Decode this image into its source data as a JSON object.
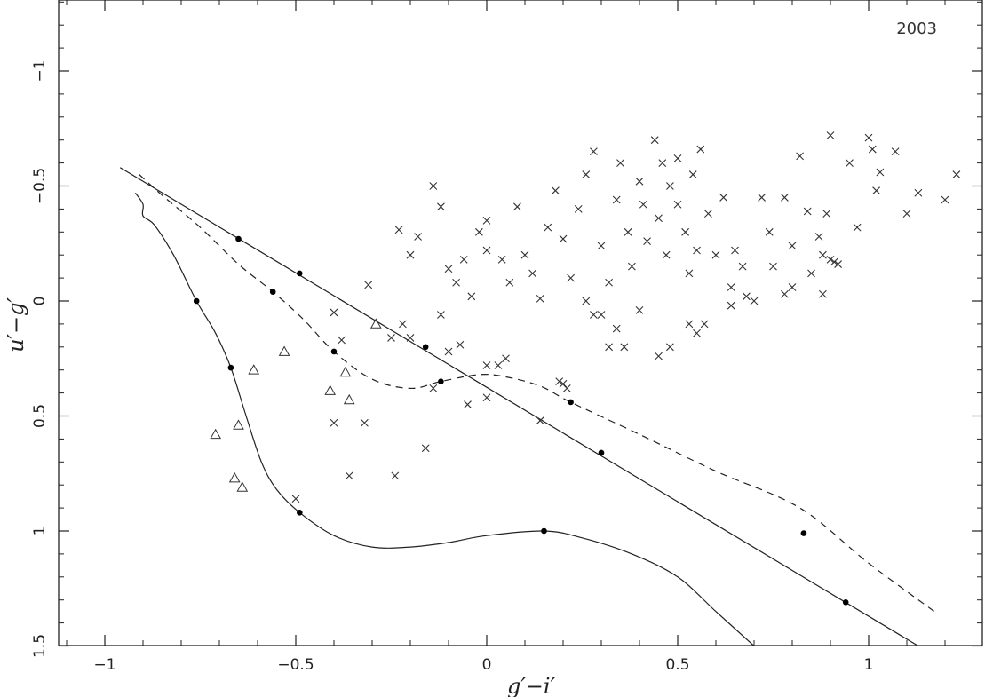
{
  "chart_data": {
    "type": "scatter",
    "year_label": "2003",
    "xlabel": "g′−i′",
    "ylabel": "u′−g′",
    "xlim": [
      -1.1,
      1.3
    ],
    "ylim": [
      1.5,
      -1.5
    ],
    "y_inverted": true,
    "x_ticks": [
      {
        "value": -1,
        "label": "−1"
      },
      {
        "value": -0.5,
        "label": "−0.5"
      },
      {
        "value": 0,
        "label": "0"
      },
      {
        "value": 0.5,
        "label": "0.5"
      },
      {
        "value": 1,
        "label": "1"
      }
    ],
    "y_ticks": [
      {
        "value": -1,
        "label": "−1"
      },
      {
        "value": -0.5,
        "label": "−0.5"
      },
      {
        "value": 0,
        "label": "0"
      },
      {
        "value": 0.5,
        "label": "0.5"
      },
      {
        "value": 1,
        "label": "1"
      },
      {
        "value": 1.5,
        "label": "1.5"
      }
    ],
    "curves": [
      {
        "style": "solid",
        "points": [
          [
            -0.96,
            -0.58
          ],
          [
            1.13,
            1.5
          ]
        ],
        "markers": [
          [
            -0.65,
            -0.27
          ],
          [
            -0.49,
            -0.12
          ],
          [
            -0.16,
            0.2
          ],
          [
            0.3,
            0.66
          ],
          [
            0.94,
            1.31
          ]
        ]
      },
      {
        "style": "dashed",
        "points": [
          [
            -0.91,
            -0.55
          ],
          [
            -0.85,
            -0.46
          ],
          [
            -0.75,
            -0.32
          ],
          [
            -0.65,
            -0.16
          ],
          [
            -0.56,
            -0.04
          ],
          [
            -0.48,
            0.08
          ],
          [
            -0.4,
            0.22
          ],
          [
            -0.3,
            0.34
          ],
          [
            -0.2,
            0.38
          ],
          [
            -0.12,
            0.35
          ],
          [
            -0.02,
            0.32
          ],
          [
            0.05,
            0.33
          ],
          [
            0.14,
            0.37
          ],
          [
            0.22,
            0.44
          ],
          [
            0.4,
            0.58
          ],
          [
            0.6,
            0.74
          ],
          [
            0.82,
            0.9
          ],
          [
            1.0,
            1.14
          ],
          [
            1.18,
            1.36
          ]
        ],
        "markers": [
          [
            -0.56,
            -0.04
          ],
          [
            -0.4,
            0.22
          ],
          [
            -0.12,
            0.35
          ],
          [
            0.22,
            0.44
          ],
          [
            0.83,
            1.01
          ]
        ]
      },
      {
        "style": "solid",
        "points": [
          [
            -0.92,
            -0.47
          ],
          [
            -0.9,
            -0.42
          ],
          [
            -0.9,
            -0.37
          ],
          [
            -0.87,
            -0.33
          ],
          [
            -0.82,
            -0.2
          ],
          [
            -0.76,
            0.0
          ],
          [
            -0.71,
            0.14
          ],
          [
            -0.67,
            0.29
          ],
          [
            -0.63,
            0.5
          ],
          [
            -0.59,
            0.7
          ],
          [
            -0.55,
            0.82
          ],
          [
            -0.49,
            0.92
          ],
          [
            -0.4,
            1.02
          ],
          [
            -0.3,
            1.07
          ],
          [
            -0.2,
            1.07
          ],
          [
            -0.1,
            1.05
          ],
          [
            0.0,
            1.02
          ],
          [
            0.15,
            1.0
          ],
          [
            0.25,
            1.03
          ],
          [
            0.38,
            1.1
          ],
          [
            0.5,
            1.2
          ],
          [
            0.6,
            1.35
          ],
          [
            0.7,
            1.5
          ]
        ],
        "markers": [
          [
            -0.76,
            0.0
          ],
          [
            -0.67,
            0.29
          ],
          [
            -0.49,
            0.92
          ],
          [
            0.15,
            1.0
          ]
        ]
      }
    ],
    "triangles": [
      [
        -0.61,
        0.3
      ],
      [
        -0.53,
        0.22
      ],
      [
        -0.41,
        0.39
      ],
      [
        -0.37,
        0.31
      ],
      [
        -0.36,
        0.43
      ],
      [
        -0.65,
        0.54
      ],
      [
        -0.71,
        0.58
      ],
      [
        -0.66,
        0.77
      ],
      [
        -0.64,
        0.81
      ],
      [
        -0.29,
        0.1
      ]
    ],
    "crosses": [
      [
        -0.23,
        -0.31
      ],
      [
        -0.2,
        -0.2
      ],
      [
        -0.18,
        -0.28
      ],
      [
        -0.14,
        -0.5
      ],
      [
        -0.12,
        -0.41
      ],
      [
        -0.1,
        -0.14
      ],
      [
        -0.08,
        -0.08
      ],
      [
        -0.06,
        -0.18
      ],
      [
        -0.04,
        -0.02
      ],
      [
        -0.02,
        -0.3
      ],
      [
        0.0,
        -0.22
      ],
      [
        0.0,
        -0.35
      ],
      [
        0.04,
        -0.18
      ],
      [
        0.06,
        -0.08
      ],
      [
        0.08,
        -0.41
      ],
      [
        0.1,
        -0.2
      ],
      [
        0.12,
        -0.12
      ],
      [
        0.14,
        -0.01
      ],
      [
        0.16,
        -0.32
      ],
      [
        0.18,
        -0.48
      ],
      [
        0.2,
        -0.27
      ],
      [
        0.22,
        -0.1
      ],
      [
        0.24,
        -0.4
      ],
      [
        0.26,
        -0.55
      ],
      [
        0.28,
        -0.65
      ],
      [
        0.3,
        -0.24
      ],
      [
        0.32,
        -0.08
      ],
      [
        0.34,
        -0.44
      ],
      [
        0.35,
        -0.6
      ],
      [
        0.37,
        -0.3
      ],
      [
        0.38,
        -0.15
      ],
      [
        0.4,
        -0.52
      ],
      [
        0.41,
        -0.42
      ],
      [
        0.42,
        -0.26
      ],
      [
        0.44,
        -0.7
      ],
      [
        0.45,
        -0.36
      ],
      [
        0.46,
        -0.6
      ],
      [
        0.47,
        -0.2
      ],
      [
        0.48,
        -0.5
      ],
      [
        0.5,
        -0.42
      ],
      [
        0.5,
        -0.62
      ],
      [
        0.52,
        -0.3
      ],
      [
        0.53,
        -0.12
      ],
      [
        0.54,
        -0.55
      ],
      [
        0.55,
        -0.22
      ],
      [
        0.56,
        -0.66
      ],
      [
        0.58,
        -0.38
      ],
      [
        0.6,
        -0.2
      ],
      [
        0.62,
        -0.45
      ],
      [
        0.64,
        -0.06
      ],
      [
        0.65,
        -0.22
      ],
      [
        0.67,
        -0.15
      ],
      [
        0.7,
        0.0
      ],
      [
        0.72,
        -0.45
      ],
      [
        0.74,
        -0.3
      ],
      [
        0.75,
        -0.15
      ],
      [
        0.78,
        -0.45
      ],
      [
        0.8,
        -0.24
      ],
      [
        0.82,
        -0.63
      ],
      [
        0.84,
        -0.39
      ],
      [
        0.85,
        -0.12
      ],
      [
        0.87,
        -0.28
      ],
      [
        0.88,
        -0.2
      ],
      [
        0.89,
        -0.38
      ],
      [
        0.9,
        -0.72
      ],
      [
        0.92,
        -0.16
      ],
      [
        0.95,
        -0.6
      ],
      [
        1.0,
        -0.71
      ],
      [
        1.01,
        -0.66
      ],
      [
        1.02,
        -0.48
      ],
      [
        1.03,
        -0.56
      ],
      [
        1.07,
        -0.65
      ],
      [
        1.1,
        -0.38
      ],
      [
        1.13,
        -0.47
      ],
      [
        1.2,
        -0.44
      ],
      [
        1.23,
        -0.55
      ],
      [
        -0.4,
        0.05
      ],
      [
        -0.38,
        0.17
      ],
      [
        -0.31,
        -0.07
      ],
      [
        -0.25,
        0.16
      ],
      [
        -0.22,
        0.1
      ],
      [
        -0.2,
        0.16
      ],
      [
        -0.12,
        0.06
      ],
      [
        -0.1,
        0.22
      ],
      [
        -0.07,
        0.19
      ],
      [
        0.0,
        0.28
      ],
      [
        0.03,
        0.28
      ],
      [
        0.05,
        0.25
      ],
      [
        -0.05,
        0.45
      ],
      [
        0.0,
        0.42
      ],
      [
        -0.14,
        0.38
      ],
      [
        0.19,
        0.35
      ],
      [
        0.2,
        0.36
      ],
      [
        0.21,
        0.38
      ],
      [
        0.14,
        0.52
      ],
      [
        -0.4,
        0.53
      ],
      [
        -0.32,
        0.53
      ],
      [
        -0.16,
        0.64
      ],
      [
        -0.36,
        0.76
      ],
      [
        -0.24,
        0.76
      ],
      [
        -0.5,
        0.86
      ],
      [
        0.3,
        0.06
      ],
      [
        0.4,
        0.04
      ],
      [
        0.45,
        0.24
      ],
      [
        0.48,
        0.2
      ],
      [
        0.53,
        0.1
      ],
      [
        0.55,
        0.14
      ],
      [
        0.57,
        0.1
      ],
      [
        0.64,
        0.02
      ],
      [
        0.68,
        -0.02
      ],
      [
        0.78,
        -0.03
      ],
      [
        0.8,
        -0.06
      ],
      [
        0.88,
        -0.03
      ],
      [
        0.9,
        -0.18
      ],
      [
        0.91,
        -0.17
      ],
      [
        0.97,
        -0.32
      ],
      [
        0.26,
        0.0
      ],
      [
        0.34,
        0.12
      ],
      [
        0.36,
        0.2
      ],
      [
        0.28,
        0.06
      ],
      [
        0.32,
        0.2
      ]
    ]
  }
}
